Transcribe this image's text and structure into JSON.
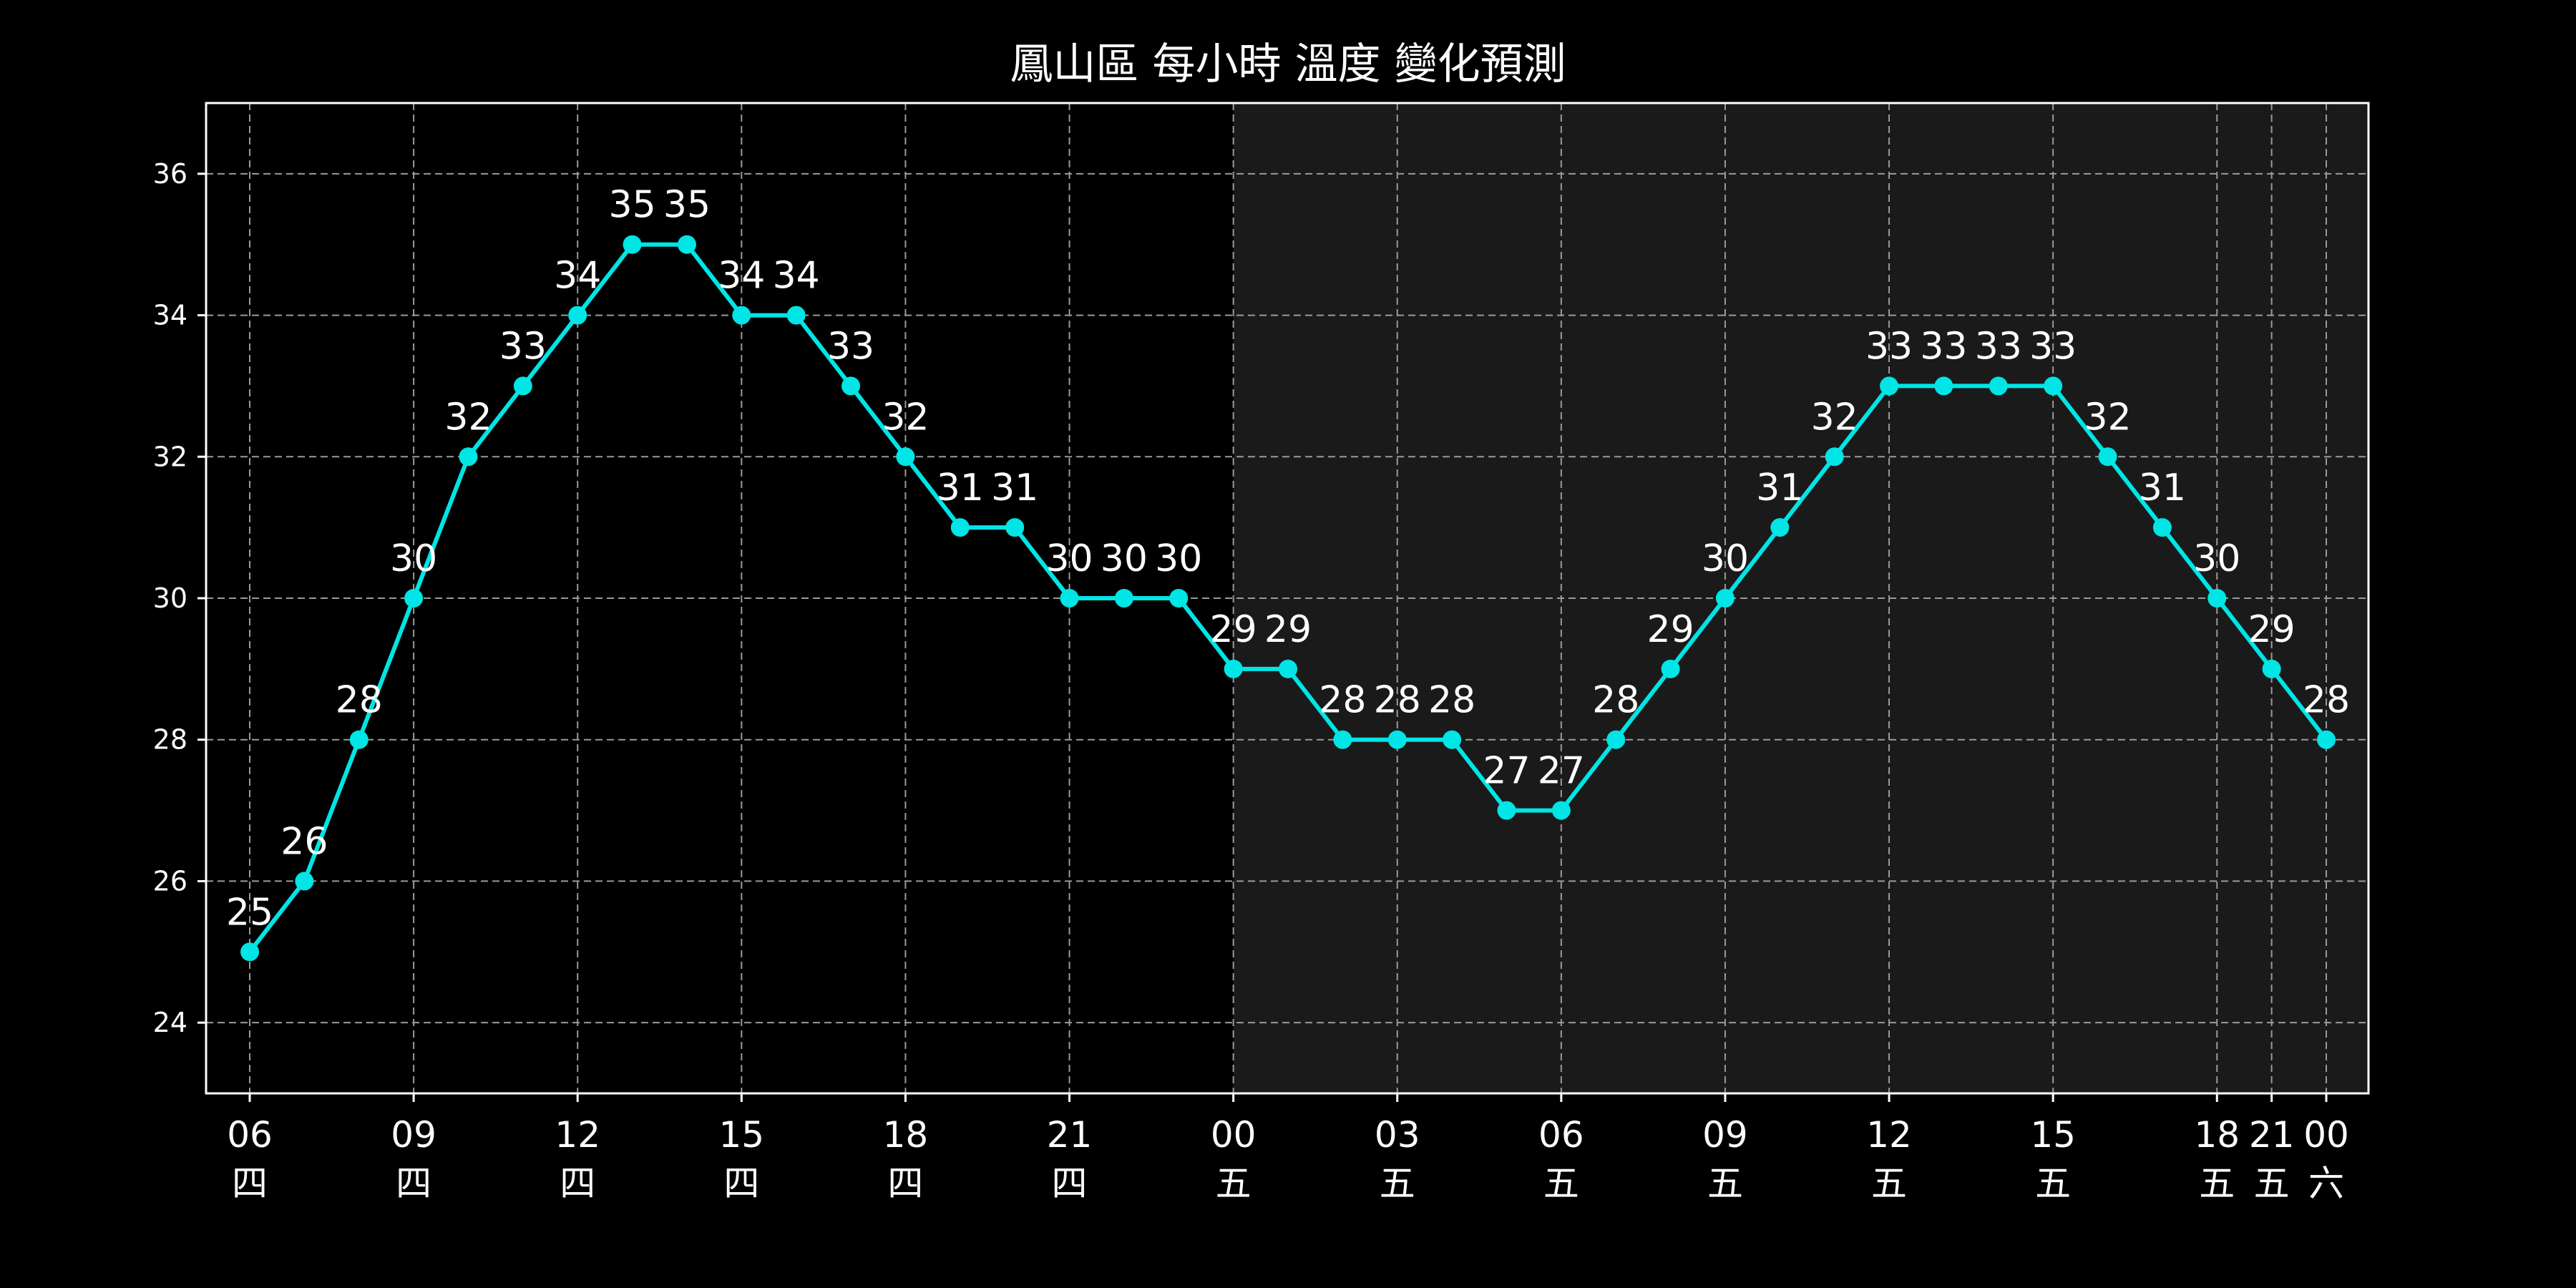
{
  "chart_data": {
    "type": "line",
    "title": "鳳山區 每小時 溫度 變化預測",
    "xlabel": "",
    "ylabel": "",
    "ylim": [
      23.0,
      37.0
    ],
    "yticks": [
      24,
      26,
      28,
      30,
      32,
      34,
      36
    ],
    "grid": true,
    "shaded_region": {
      "from": "00 五",
      "to": "00 六"
    },
    "colors": {
      "background": "#000000",
      "plot_background": "#000000",
      "shaded": "#1a1a1a",
      "line": "#00e5e5",
      "text": "#ffffff",
      "grid": "#9a9a9a",
      "axes": "#ffffff"
    },
    "x": [
      "06 四",
      "07 四",
      "08 四",
      "09 四",
      "10 四",
      "11 四",
      "12 四",
      "13 四",
      "14 四",
      "15 四",
      "16 四",
      "17 四",
      "18 四",
      "19 四",
      "20 四",
      "21 四",
      "22 四",
      "23 四",
      "00 五",
      "01 五",
      "02 五",
      "03 五",
      "04 五",
      "05 五",
      "06 五",
      "07 五",
      "08 五",
      "09 五",
      "10 五",
      "11 五",
      "12 五",
      "13 五",
      "14 五",
      "15 五",
      "16 五",
      "17 五",
      "18 五",
      "21 五",
      "00 六"
    ],
    "values": [
      25,
      26,
      28,
      30,
      32,
      33,
      34,
      35,
      35,
      34,
      34,
      33,
      32,
      31,
      31,
      30,
      30,
      30,
      29,
      29,
      28,
      28,
      28,
      27,
      27,
      28,
      29,
      30,
      31,
      32,
      33,
      33,
      33,
      33,
      32,
      31,
      30,
      29,
      28
    ],
    "xticks": [
      {
        "hour": "06",
        "day": "四",
        "index": 0
      },
      {
        "hour": "09",
        "day": "四",
        "index": 3
      },
      {
        "hour": "12",
        "day": "四",
        "index": 6
      },
      {
        "hour": "15",
        "day": "四",
        "index": 9
      },
      {
        "hour": "18",
        "day": "四",
        "index": 12
      },
      {
        "hour": "21",
        "day": "四",
        "index": 15
      },
      {
        "hour": "00",
        "day": "五",
        "index": 18
      },
      {
        "hour": "03",
        "day": "五",
        "index": 21
      },
      {
        "hour": "06",
        "day": "五",
        "index": 24
      },
      {
        "hour": "09",
        "day": "五",
        "index": 27
      },
      {
        "hour": "12",
        "day": "五",
        "index": 30
      },
      {
        "hour": "15",
        "day": "五",
        "index": 33
      },
      {
        "hour": "18",
        "day": "五",
        "index": 36
      },
      {
        "hour": "21",
        "day": "五",
        "index": 37
      },
      {
        "hour": "00",
        "day": "六",
        "index": 38
      }
    ]
  }
}
